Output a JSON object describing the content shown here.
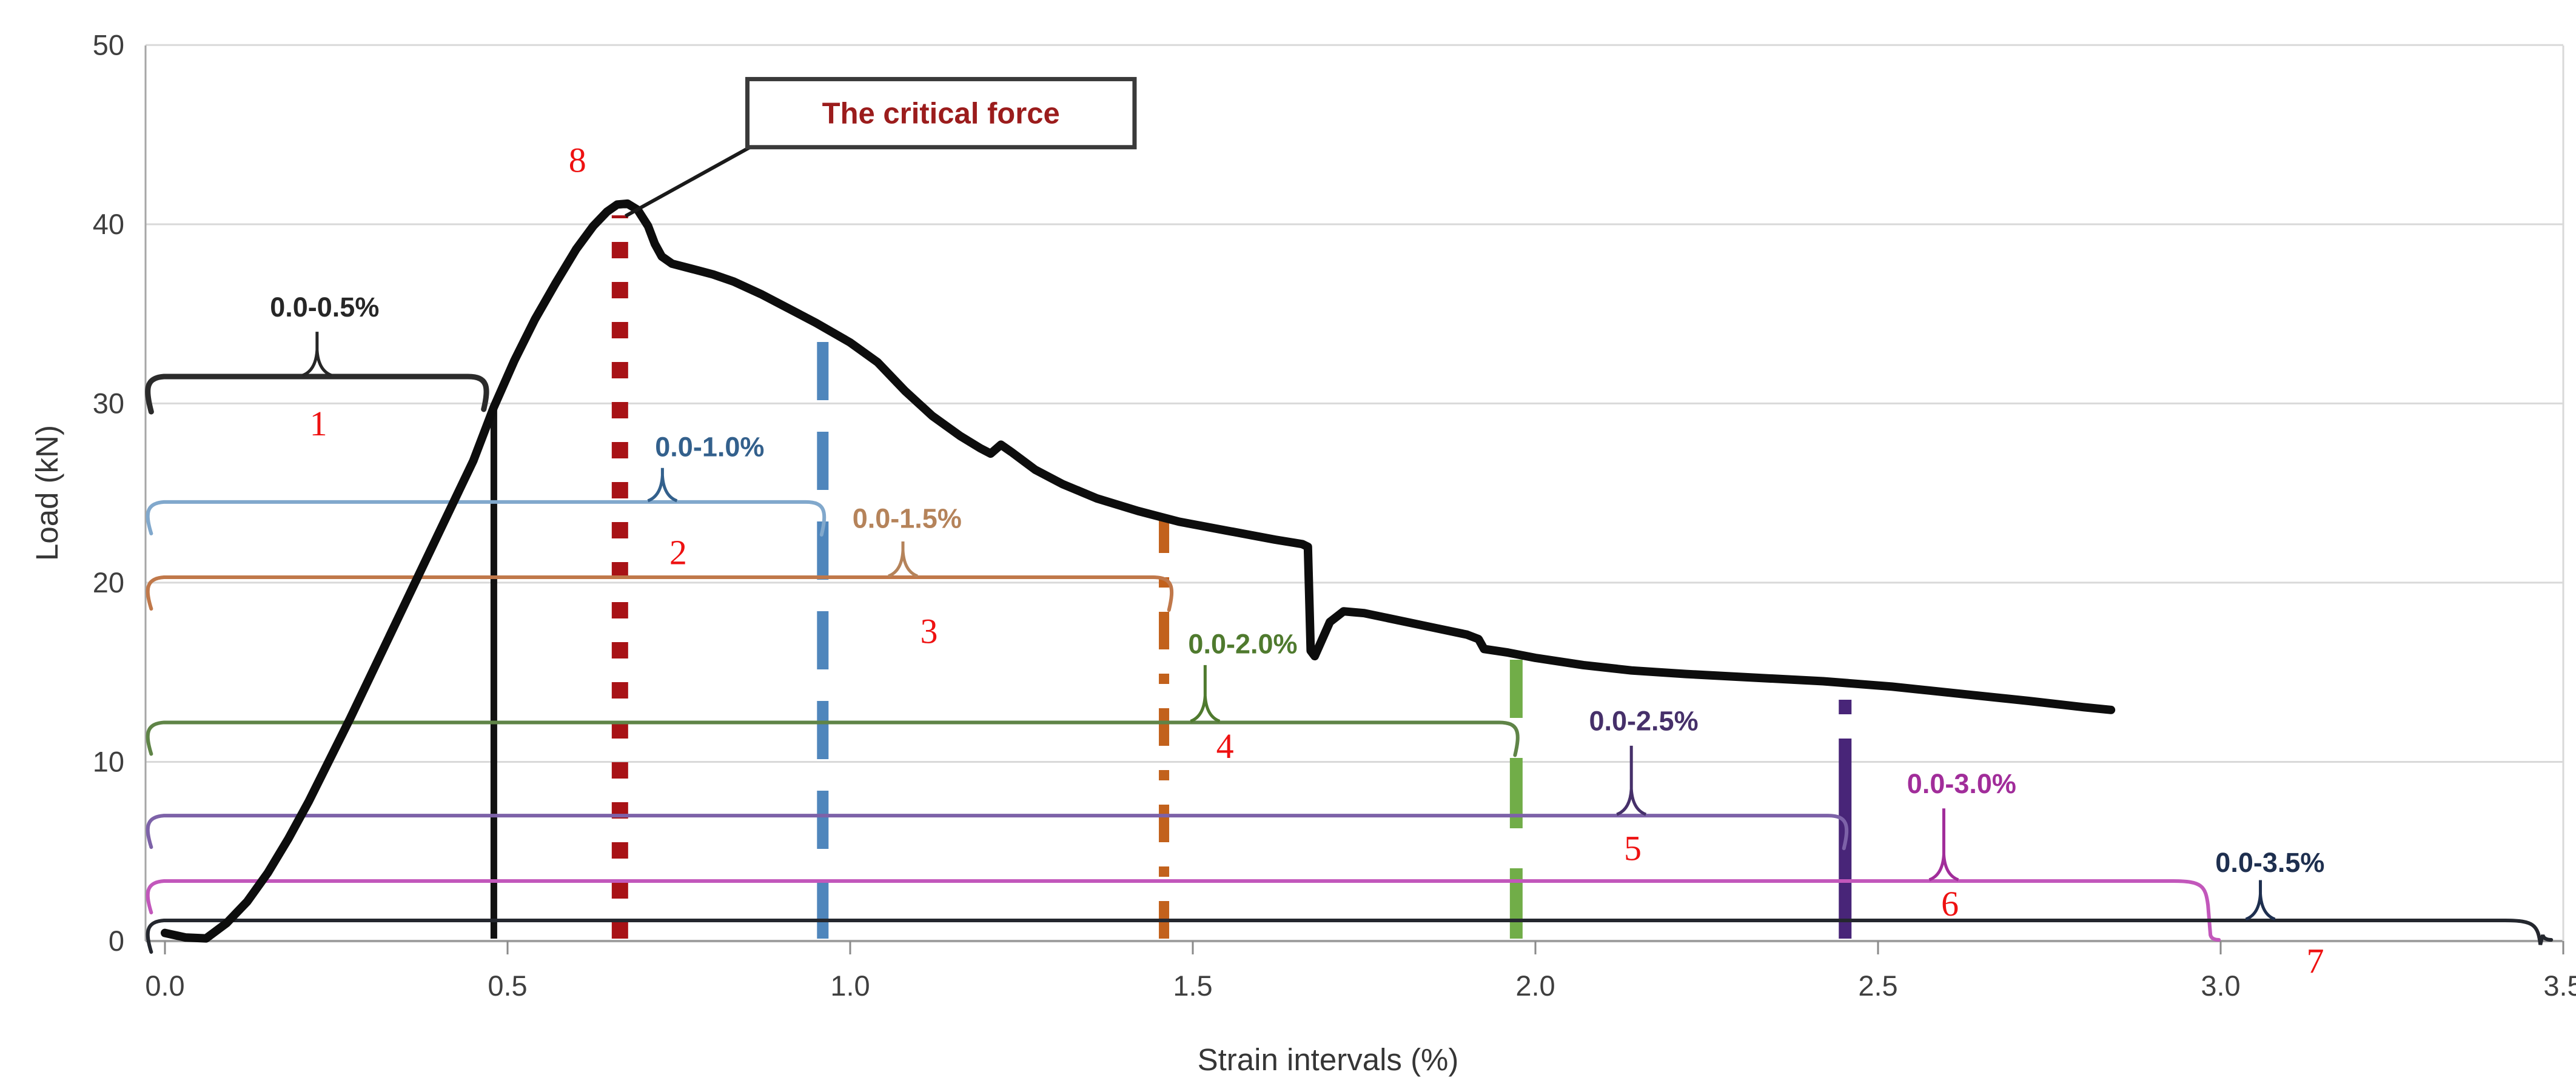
{
  "chart_data": {
    "type": "line",
    "title": "",
    "xlabel": "Strain intervals (%)",
    "ylabel": "Load (kN)",
    "xlim": [
      0,
      3.5
    ],
    "ylim": [
      0,
      50
    ],
    "grid": "horizontal-only",
    "x_ticks": [
      "0.0",
      "0.5",
      "1.0",
      "1.5",
      "2.0",
      "2.5",
      "3.0",
      "3.5"
    ],
    "y_ticks": [
      "0",
      "10",
      "20",
      "30",
      "40",
      "50"
    ],
    "curve": {
      "name": "load-strain-curve",
      "color": "#0d0d0d",
      "points": [
        [
          0.0,
          0.45
        ],
        [
          0.03,
          0.2
        ],
        [
          0.06,
          0.15
        ],
        [
          0.09,
          1.0
        ],
        [
          0.12,
          2.2
        ],
        [
          0.15,
          3.8
        ],
        [
          0.18,
          5.7
        ],
        [
          0.21,
          7.8
        ],
        [
          0.24,
          10.1
        ],
        [
          0.27,
          12.4
        ],
        [
          0.3,
          14.8
        ],
        [
          0.33,
          17.2
        ],
        [
          0.36,
          19.6
        ],
        [
          0.39,
          22.0
        ],
        [
          0.42,
          24.4
        ],
        [
          0.45,
          26.8
        ],
        [
          0.48,
          29.8
        ],
        [
          0.51,
          32.4
        ],
        [
          0.54,
          34.7
        ],
        [
          0.57,
          36.7
        ],
        [
          0.6,
          38.6
        ],
        [
          0.625,
          39.9
        ],
        [
          0.645,
          40.7
        ],
        [
          0.66,
          41.1
        ],
        [
          0.675,
          41.15
        ],
        [
          0.69,
          40.8
        ],
        [
          0.705,
          39.9
        ],
        [
          0.715,
          38.9
        ],
        [
          0.725,
          38.2
        ],
        [
          0.74,
          37.8
        ],
        [
          0.77,
          37.5
        ],
        [
          0.8,
          37.2
        ],
        [
          0.83,
          36.8
        ],
        [
          0.87,
          36.1
        ],
        [
          0.91,
          35.3
        ],
        [
          0.95,
          34.5
        ],
        [
          1.0,
          33.4
        ],
        [
          1.04,
          32.3
        ],
        [
          1.08,
          30.7
        ],
        [
          1.12,
          29.3
        ],
        [
          1.16,
          28.2
        ],
        [
          1.19,
          27.5
        ],
        [
          1.205,
          27.2
        ],
        [
          1.22,
          27.7
        ],
        [
          1.235,
          27.3
        ],
        [
          1.27,
          26.3
        ],
        [
          1.31,
          25.5
        ],
        [
          1.36,
          24.7
        ],
        [
          1.42,
          24.0
        ],
        [
          1.48,
          23.4
        ],
        [
          1.55,
          22.9
        ],
        [
          1.62,
          22.4
        ],
        [
          1.66,
          22.15
        ],
        [
          1.668,
          22.0
        ],
        [
          1.672,
          16.2
        ],
        [
          1.678,
          15.9
        ],
        [
          1.7,
          17.8
        ],
        [
          1.72,
          18.4
        ],
        [
          1.75,
          18.3
        ],
        [
          1.8,
          17.9
        ],
        [
          1.85,
          17.5
        ],
        [
          1.9,
          17.1
        ],
        [
          1.917,
          16.85
        ],
        [
          1.925,
          16.3
        ],
        [
          1.96,
          16.1
        ],
        [
          2.0,
          15.8
        ],
        [
          2.07,
          15.4
        ],
        [
          2.14,
          15.1
        ],
        [
          2.22,
          14.9
        ],
        [
          2.32,
          14.7
        ],
        [
          2.42,
          14.5
        ],
        [
          2.52,
          14.2
        ],
        [
          2.62,
          13.8
        ],
        [
          2.72,
          13.4
        ],
        [
          2.8,
          13.05
        ],
        [
          2.84,
          12.9
        ]
      ]
    },
    "critical_force": {
      "label": "The critical force",
      "marker_number": "8",
      "peak": [
        0.665,
        41.2
      ],
      "box": {
        "x0": 0.85,
        "x1": 1.415,
        "y_top": 48.1,
        "y_bottom": 44.3
      },
      "number_pos": [
        0.602,
        43.6
      ],
      "text_color": "#9b1c1c",
      "vertical_line": {
        "x": 0.664,
        "top": 40.5,
        "style": "dotted",
        "color": "#a81216"
      }
    },
    "intervals": [
      {
        "number": "1",
        "label": "0.0-0.5%",
        "range": [
          0.0,
          0.5
        ],
        "label_color": "#262626",
        "line_color": "#2b2b2b",
        "bar_y": 31.5,
        "x_start": -0.028,
        "x_end": 0.467,
        "label_pos": [
          0.233,
          35.4
        ],
        "number_pos": [
          0.224,
          28.9
        ],
        "spike": {
          "x": 0.222,
          "top": 34.0
        },
        "vertical": {
          "x": 0.48,
          "top": 29.9,
          "style": "solid",
          "color": "#111111",
          "width": 11
        }
      },
      {
        "number": "2",
        "label": "0.0-1.0%",
        "range": [
          0.0,
          1.0
        ],
        "label_color": "#33608c",
        "line_color": "#81a8cc",
        "bar_y": 24.5,
        "x_start": -0.028,
        "x_end": 0.96,
        "label_pos": [
          0.795,
          27.6
        ],
        "number_pos": [
          0.749,
          21.7
        ],
        "spike": {
          "x": 0.726,
          "top": 26.4
        },
        "vertical": {
          "x": 0.96,
          "top": 34.6,
          "style": "dashed",
          "color": "#4f86bc",
          "width": 19
        }
      },
      {
        "number": "3",
        "label": "0.0-1.5%",
        "range": [
          0.0,
          1.5
        ],
        "label_color": "#b5835a",
        "line_color": "#c0784a",
        "bar_y": 20.3,
        "x_start": -0.028,
        "x_end": 1.467,
        "label_pos": [
          1.083,
          23.6
        ],
        "number_pos": [
          1.115,
          17.3
        ],
        "spike": {
          "x": 1.077,
          "top": 22.3
        },
        "vertical": {
          "x": 1.458,
          "top": 24.2,
          "style": "dashdot",
          "color": "#c2611c",
          "width": 17
        }
      },
      {
        "number": "4",
        "label": "0.0-2.0%",
        "range": [
          0.0,
          2.0
        ],
        "label_color": "#4f7a2e",
        "line_color": "#5f8447",
        "bar_y": 12.2,
        "x_start": -0.028,
        "x_end": 1.972,
        "label_pos": [
          1.573,
          16.6
        ],
        "number_pos": [
          1.547,
          10.9
        ],
        "spike": {
          "x": 1.518,
          "top": 15.4
        },
        "vertical": {
          "x": 1.972,
          "top": 15.7,
          "style": "longdash",
          "color": "#71ad48",
          "width": 21
        }
      },
      {
        "number": "5",
        "label": "0.0-2.5%",
        "range": [
          0.0,
          2.5
        ],
        "label_color": "#46306a",
        "line_color": "#7d62a8",
        "bar_y": 7.0,
        "x_start": -0.028,
        "x_end": 2.452,
        "label_pos": [
          2.158,
          12.3
        ],
        "number_pos": [
          2.142,
          5.2
        ],
        "spike": {
          "x": 2.14,
          "top": 10.9
        },
        "vertical": {
          "x": 2.452,
          "top": 14.5,
          "style": "mostly-solid",
          "color": "#482578",
          "width": 21
        }
      },
      {
        "number": "6",
        "label": "0.0-3.0%",
        "range": [
          0.0,
          3.0
        ],
        "label_color": "#a12d9a",
        "line_color": "#c257bb",
        "bar_y": 3.35,
        "x_start": -0.028,
        "x_end": 2.955,
        "label_pos": [
          2.622,
          8.8
        ],
        "number_pos": [
          2.605,
          2.1
        ],
        "spike": {
          "x": 2.596,
          "top": 7.4
        },
        "vertical": null,
        "drops_to_axis": true
      },
      {
        "number": "7",
        "label": "0.0-3.5%",
        "range": [
          0.0,
          3.5
        ],
        "label_color": "#1e2f4f",
        "line_color": "#24272e",
        "bar_y": 1.15,
        "x_start": -0.028,
        "x_end": 3.44,
        "label_pos": [
          3.072,
          4.4
        ],
        "number_pos": [
          3.138,
          -1.1
        ],
        "spike": {
          "x": 3.058,
          "top": 3.4
        },
        "vertical": null,
        "drops_to_axis": true
      }
    ]
  }
}
